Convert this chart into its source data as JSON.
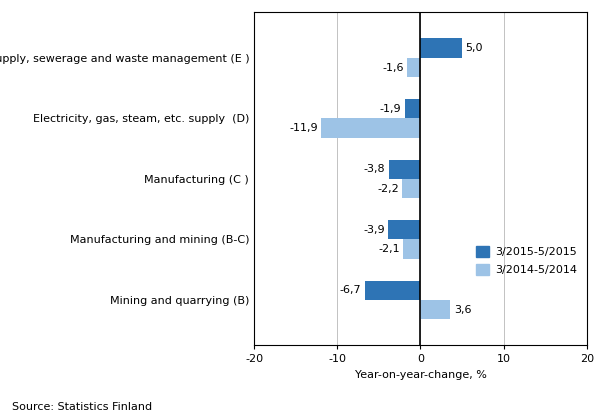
{
  "categories": [
    "Mining and quarrying (B)",
    "Manufacturing and mining (B-C)",
    "Manufacturing (C )",
    "Electricity, gas, steam, etc. supply  (D)",
    "Water supply, sewerage and waste management (E )"
  ],
  "series_2015": [
    -6.7,
    -3.9,
    -3.8,
    -1.9,
    5.0
  ],
  "series_2014": [
    3.6,
    -2.1,
    -2.2,
    -11.9,
    -1.6
  ],
  "color_2015": "#2E74B5",
  "color_2014": "#9DC3E6",
  "legend_labels": [
    "3/2015-5/2015",
    "3/2014-5/2014"
  ],
  "xlabel": "Year-on-year-change, %",
  "xlim": [
    -20,
    20
  ],
  "xticks": [
    -20,
    -10,
    0,
    10,
    20
  ],
  "bar_height": 0.32,
  "source_text": "Source: Statistics Finland",
  "label_fontsize": 8,
  "tick_fontsize": 8,
  "value_labels_2015": [
    "-6,7",
    "-3,9",
    "-3,8",
    "-1,9",
    "5,0"
  ],
  "value_labels_2014": [
    "3,6",
    "-2,1",
    "-2,2",
    "-11,9",
    "-1,6"
  ]
}
